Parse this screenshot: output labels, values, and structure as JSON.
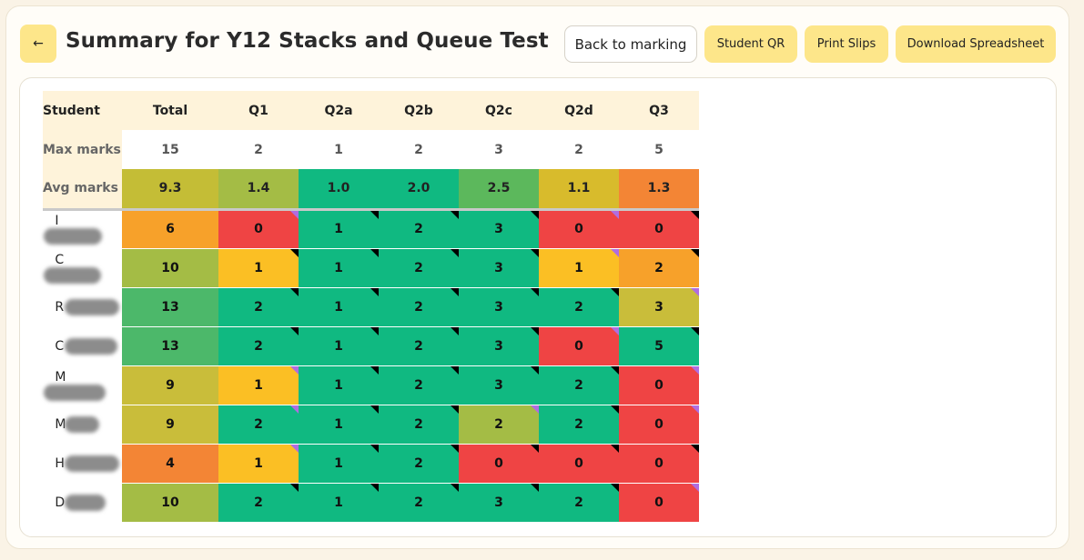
{
  "header": {
    "title": "Summary for Y12 Stacks and Queue Test",
    "back_icon": "←",
    "back_to_marking": "Back to marking",
    "student_qr": "Student QR",
    "print_slips": "Print Slips",
    "download_spreadsheet": "Download Spreadsheet"
  },
  "table": {
    "columns": [
      "Student",
      "Total",
      "Q1",
      "Q2a",
      "Q2b",
      "Q2c",
      "Q2d",
      "Q3"
    ],
    "max_label": "Max marks",
    "max_marks": [
      "15",
      "2",
      "1",
      "2",
      "3",
      "2",
      "5"
    ],
    "avg_label": "Avg marks",
    "avg_marks": [
      "9.3",
      "1.4",
      "1.0",
      "2.0",
      "2.5",
      "1.1",
      "1.3"
    ],
    "avg_colors": [
      "#c4bd36",
      "#a4bc45",
      "#10b981",
      "#10b981",
      "#5cb85c",
      "#d8bb2c",
      "#f38535"
    ],
    "students": [
      {
        "initial": "I",
        "cells": [
          {
            "v": "6",
            "c": "#f7a12a",
            "m": ""
          },
          {
            "v": "0",
            "c": "#ef4444",
            "m": "purple"
          },
          {
            "v": "1",
            "c": "#10b981",
            "m": "black"
          },
          {
            "v": "2",
            "c": "#10b981",
            "m": "black"
          },
          {
            "v": "3",
            "c": "#10b981",
            "m": "black"
          },
          {
            "v": "0",
            "c": "#ef4444",
            "m": "purple"
          },
          {
            "v": "0",
            "c": "#ef4444",
            "m": "black"
          }
        ]
      },
      {
        "initial": "C",
        "cells": [
          {
            "v": "10",
            "c": "#a4bc45",
            "m": ""
          },
          {
            "v": "1",
            "c": "#fbbf24",
            "m": "black"
          },
          {
            "v": "1",
            "c": "#10b981",
            "m": "black"
          },
          {
            "v": "2",
            "c": "#10b981",
            "m": "black"
          },
          {
            "v": "3",
            "c": "#10b981",
            "m": "black"
          },
          {
            "v": "1",
            "c": "#fbbf24",
            "m": "purple"
          },
          {
            "v": "2",
            "c": "#f7a12a",
            "m": "black"
          }
        ]
      },
      {
        "initial": "R",
        "cells": [
          {
            "v": "13",
            "c": "#4cb86a",
            "m": ""
          },
          {
            "v": "2",
            "c": "#10b981",
            "m": "black"
          },
          {
            "v": "1",
            "c": "#10b981",
            "m": "black"
          },
          {
            "v": "2",
            "c": "#10b981",
            "m": "black"
          },
          {
            "v": "3",
            "c": "#10b981",
            "m": "black"
          },
          {
            "v": "2",
            "c": "#10b981",
            "m": "black"
          },
          {
            "v": "3",
            "c": "#c9bd3a",
            "m": "purple"
          }
        ]
      },
      {
        "initial": "C",
        "cells": [
          {
            "v": "13",
            "c": "#4cb86a",
            "m": ""
          },
          {
            "v": "2",
            "c": "#10b981",
            "m": "black"
          },
          {
            "v": "1",
            "c": "#10b981",
            "m": "black"
          },
          {
            "v": "2",
            "c": "#10b981",
            "m": "black"
          },
          {
            "v": "3",
            "c": "#10b981",
            "m": "black"
          },
          {
            "v": "0",
            "c": "#ef4444",
            "m": "purple"
          },
          {
            "v": "5",
            "c": "#10b981",
            "m": "black"
          }
        ]
      },
      {
        "initial": "M",
        "cells": [
          {
            "v": "9",
            "c": "#c9bd3a",
            "m": ""
          },
          {
            "v": "1",
            "c": "#fbbf24",
            "m": "purple"
          },
          {
            "v": "1",
            "c": "#10b981",
            "m": "black"
          },
          {
            "v": "2",
            "c": "#10b981",
            "m": "black"
          },
          {
            "v": "3",
            "c": "#10b981",
            "m": "black"
          },
          {
            "v": "2",
            "c": "#10b981",
            "m": "black"
          },
          {
            "v": "0",
            "c": "#ef4444",
            "m": "purple"
          }
        ]
      },
      {
        "initial": "M",
        "cells": [
          {
            "v": "9",
            "c": "#c9bd3a",
            "m": ""
          },
          {
            "v": "2",
            "c": "#10b981",
            "m": "purple"
          },
          {
            "v": "1",
            "c": "#10b981",
            "m": "black"
          },
          {
            "v": "2",
            "c": "#10b981",
            "m": "black"
          },
          {
            "v": "2",
            "c": "#a4bc45",
            "m": "purple"
          },
          {
            "v": "2",
            "c": "#10b981",
            "m": "black"
          },
          {
            "v": "0",
            "c": "#ef4444",
            "m": "purple"
          }
        ]
      },
      {
        "initial": "H",
        "cells": [
          {
            "v": "4",
            "c": "#f38535",
            "m": ""
          },
          {
            "v": "1",
            "c": "#fbbf24",
            "m": "purple"
          },
          {
            "v": "1",
            "c": "#10b981",
            "m": "black"
          },
          {
            "v": "2",
            "c": "#10b981",
            "m": "black"
          },
          {
            "v": "0",
            "c": "#ef4444",
            "m": "black"
          },
          {
            "v": "0",
            "c": "#ef4444",
            "m": "black"
          },
          {
            "v": "0",
            "c": "#ef4444",
            "m": "black"
          }
        ]
      },
      {
        "initial": "D",
        "cells": [
          {
            "v": "10",
            "c": "#a4bc45",
            "m": ""
          },
          {
            "v": "2",
            "c": "#10b981",
            "m": "black"
          },
          {
            "v": "1",
            "c": "#10b981",
            "m": "black"
          },
          {
            "v": "2",
            "c": "#10b981",
            "m": "black"
          },
          {
            "v": "3",
            "c": "#10b981",
            "m": "black"
          },
          {
            "v": "2",
            "c": "#10b981",
            "m": "black"
          },
          {
            "v": "0",
            "c": "#ef4444",
            "m": "purple"
          }
        ]
      }
    ]
  }
}
